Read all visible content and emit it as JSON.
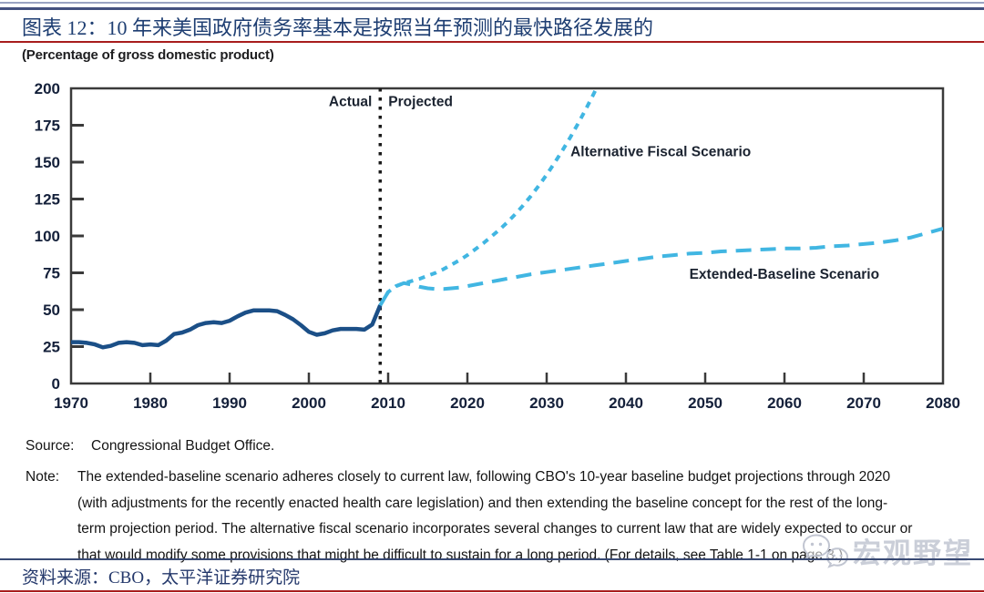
{
  "header": {
    "title": "图表 12：10 年来美国政府债务率基本是按照当年预测的最快路径发展的",
    "subtitle": "(Percentage of gross domestic product)"
  },
  "source": {
    "label": "Source:",
    "text": "Congressional Budget Office."
  },
  "note": {
    "label": "Note:",
    "lines": [
      "The extended-baseline scenario adheres closely to current law, following CBO's 10-year baseline budget projections through 2020",
      "(with adjustments for the recently enacted health care legislation) and then extending the baseline concept for the rest of the long-",
      "term projection period. The alternative fiscal scenario incorporates several changes to current law that are widely expected to occur or",
      "that would modify some provisions that might be difficult to sustain for a long period. (For details, see Table 1-1 on page 3.)"
    ]
  },
  "footer": {
    "source_text": "资料来源：CBO，太平洋证券研究院",
    "watermark_text": "宏观野望"
  },
  "colors": {
    "accent_red": "#a81d1d",
    "rule_navy": "#44517f",
    "title_blue": "#1e3e72",
    "actual_navy": "#1b4f87",
    "projection_blue": "#41b6e2",
    "axis_dark": "#3a3a3a",
    "tick_label": "#14203a",
    "watermark_gray": "#c1c5d1"
  },
  "chart_data": {
    "type": "line",
    "title": "",
    "ylabel": "(Percentage of gross domestic product)",
    "xlabel": "",
    "xlim": [
      1970,
      2080
    ],
    "ylim": [
      0,
      200
    ],
    "x_ticks": [
      1970,
      1980,
      1990,
      2000,
      2010,
      2020,
      2030,
      2040,
      2050,
      2060,
      2070,
      2080
    ],
    "y_ticks": [
      0,
      25,
      50,
      75,
      100,
      125,
      150,
      175,
      200
    ],
    "grid": false,
    "legend_position": "inline-annotations",
    "divider": {
      "year": 2009,
      "left_label": "Actual",
      "right_label": "Projected"
    },
    "annotations": [
      {
        "id": "actual",
        "text": "Actual",
        "x": 2009,
        "y": 188,
        "anchor": "end"
      },
      {
        "id": "projected",
        "text": "Projected",
        "x": 2009,
        "y": 188,
        "anchor": "start"
      },
      {
        "id": "alt",
        "text": "Alternative Fiscal Scenario",
        "x": 2033,
        "y": 154,
        "anchor": "start"
      },
      {
        "id": "ext",
        "text": "Extended-Baseline Scenario",
        "x": 2048,
        "y": 71,
        "anchor": "start"
      }
    ],
    "series": [
      {
        "name": "Actual",
        "color": "#1b4f87",
        "dash": "solid",
        "width": 4.5,
        "points": [
          [
            1970,
            28
          ],
          [
            1971,
            28
          ],
          [
            1972,
            27.5
          ],
          [
            1973,
            26.5
          ],
          [
            1974,
            24.5
          ],
          [
            1975,
            25.5
          ],
          [
            1976,
            27.5
          ],
          [
            1977,
            28
          ],
          [
            1978,
            27.5
          ],
          [
            1979,
            26
          ],
          [
            1980,
            26.5
          ],
          [
            1981,
            26
          ],
          [
            1982,
            29
          ],
          [
            1983,
            33.5
          ],
          [
            1984,
            34.5
          ],
          [
            1985,
            36.5
          ],
          [
            1986,
            39.5
          ],
          [
            1987,
            41
          ],
          [
            1988,
            41.5
          ],
          [
            1989,
            41
          ],
          [
            1990,
            42.5
          ],
          [
            1991,
            45.5
          ],
          [
            1992,
            48
          ],
          [
            1993,
            49.5
          ],
          [
            1994,
            49.5
          ],
          [
            1995,
            49.5
          ],
          [
            1996,
            49
          ],
          [
            1997,
            46.5
          ],
          [
            1998,
            43.5
          ],
          [
            1999,
            39.5
          ],
          [
            2000,
            35
          ],
          [
            2001,
            33
          ],
          [
            2002,
            34
          ],
          [
            2003,
            36
          ],
          [
            2004,
            37
          ],
          [
            2005,
            37
          ],
          [
            2006,
            37
          ],
          [
            2007,
            36.5
          ],
          [
            2008,
            40
          ],
          [
            2009,
            53
          ]
        ]
      },
      {
        "name": "Extended-Baseline Scenario",
        "color": "#41b6e2",
        "dash": "dashed",
        "width": 4,
        "points": [
          [
            2009,
            53
          ],
          [
            2010,
            62
          ],
          [
            2011,
            66
          ],
          [
            2012,
            68
          ],
          [
            2013,
            67
          ],
          [
            2014,
            65.5
          ],
          [
            2015,
            64.5
          ],
          [
            2016,
            64
          ],
          [
            2017,
            64
          ],
          [
            2018,
            64.5
          ],
          [
            2019,
            65
          ],
          [
            2020,
            66
          ],
          [
            2022,
            68
          ],
          [
            2024,
            70
          ],
          [
            2026,
            72
          ],
          [
            2028,
            74
          ],
          [
            2030,
            75.5
          ],
          [
            2032,
            77
          ],
          [
            2034,
            78.5
          ],
          [
            2036,
            80
          ],
          [
            2038,
            81.5
          ],
          [
            2040,
            83
          ],
          [
            2042,
            84.5
          ],
          [
            2044,
            86
          ],
          [
            2046,
            87
          ],
          [
            2048,
            88
          ],
          [
            2050,
            88.5
          ],
          [
            2052,
            89.5
          ],
          [
            2054,
            90
          ],
          [
            2056,
            90.5
          ],
          [
            2058,
            91
          ],
          [
            2060,
            91.5
          ],
          [
            2062,
            91.5
          ],
          [
            2064,
            92
          ],
          [
            2066,
            93
          ],
          [
            2068,
            93.5
          ],
          [
            2070,
            94.5
          ],
          [
            2072,
            95.5
          ],
          [
            2074,
            97
          ],
          [
            2076,
            99
          ],
          [
            2078,
            102
          ],
          [
            2080,
            105
          ]
        ]
      },
      {
        "name": "Alternative Fiscal Scenario",
        "color": "#41b6e2",
        "dash": "dotted",
        "width": 4,
        "points": [
          [
            2009,
            53
          ],
          [
            2010,
            62
          ],
          [
            2011,
            66
          ],
          [
            2012,
            68
          ],
          [
            2013,
            69.5
          ],
          [
            2014,
            71
          ],
          [
            2015,
            73
          ],
          [
            2016,
            75
          ],
          [
            2017,
            77.5
          ],
          [
            2018,
            80.5
          ],
          [
            2019,
            83.5
          ],
          [
            2020,
            87
          ],
          [
            2021,
            91
          ],
          [
            2022,
            95
          ],
          [
            2023,
            99.5
          ],
          [
            2024,
            104
          ],
          [
            2025,
            109
          ],
          [
            2026,
            114.5
          ],
          [
            2027,
            120.5
          ],
          [
            2028,
            127
          ],
          [
            2029,
            134
          ],
          [
            2030,
            141.5
          ],
          [
            2031,
            149.5
          ],
          [
            2032,
            158
          ],
          [
            2033,
            167
          ],
          [
            2034,
            176.5
          ],
          [
            2035,
            186.5
          ],
          [
            2036,
            197
          ],
          [
            2037,
            208
          ]
        ]
      }
    ]
  }
}
